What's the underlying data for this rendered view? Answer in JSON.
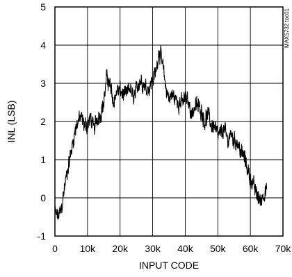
{
  "chart_data": {
    "type": "line",
    "xlabel": "INPUT CODE",
    "ylabel": "INL (LSB)",
    "xlim": [
      0,
      70000
    ],
    "ylim": [
      -1,
      5
    ],
    "grid": true,
    "x_ticks": [
      0,
      10000,
      20000,
      30000,
      40000,
      50000,
      60000,
      70000
    ],
    "x_tick_labels": [
      "0",
      "10k",
      "20k",
      "30k",
      "40k",
      "50k",
      "60k",
      "70k"
    ],
    "y_ticks": [
      -1,
      0,
      1,
      2,
      3,
      4,
      5
    ],
    "y_tick_labels": [
      "-1",
      "0",
      "1",
      "2",
      "3",
      "4",
      "5"
    ],
    "watermark": "MAX5732 toc01",
    "series": [
      {
        "color": "#000000",
        "noise_amplitude": 0.18,
        "x": [
          0,
          1000,
          2000,
          3000,
          4000,
          5000,
          6000,
          7000,
          8000,
          9000,
          10000,
          11000,
          12000,
          13000,
          14000,
          15000,
          16000,
          17000,
          18000,
          19000,
          20000,
          21000,
          22000,
          23000,
          24000,
          25000,
          26000,
          27000,
          28000,
          29000,
          30000,
          31000,
          32000,
          33000,
          34000,
          35000,
          36000,
          37000,
          38000,
          39000,
          40000,
          41000,
          42000,
          43000,
          44000,
          45000,
          46000,
          47000,
          48000,
          49000,
          50000,
          51000,
          52000,
          53000,
          54000,
          55000,
          56000,
          57000,
          58000,
          59000,
          60000,
          61000,
          62000,
          63000,
          64000,
          65000
        ],
        "y": [
          -0.4,
          -0.5,
          -0.3,
          0.3,
          0.8,
          1.2,
          1.7,
          2.0,
          2.1,
          1.9,
          1.9,
          2.1,
          1.8,
          2.1,
          2.2,
          2.5,
          3.2,
          2.9,
          2.5,
          2.8,
          2.8,
          2.7,
          2.7,
          2.9,
          2.6,
          2.8,
          3.1,
          3.0,
          2.9,
          2.9,
          3.1,
          3.3,
          3.9,
          3.5,
          2.9,
          2.6,
          2.7,
          2.6,
          2.5,
          2.5,
          2.6,
          2.5,
          2.2,
          2.4,
          2.4,
          2.3,
          2.0,
          2.2,
          1.9,
          1.9,
          1.6,
          1.7,
          1.8,
          1.5,
          1.7,
          1.5,
          1.5,
          1.2,
          1.1,
          0.8,
          0.5,
          0.3,
          0.1,
          -0.1,
          0.1,
          0.2
        ]
      }
    ]
  }
}
